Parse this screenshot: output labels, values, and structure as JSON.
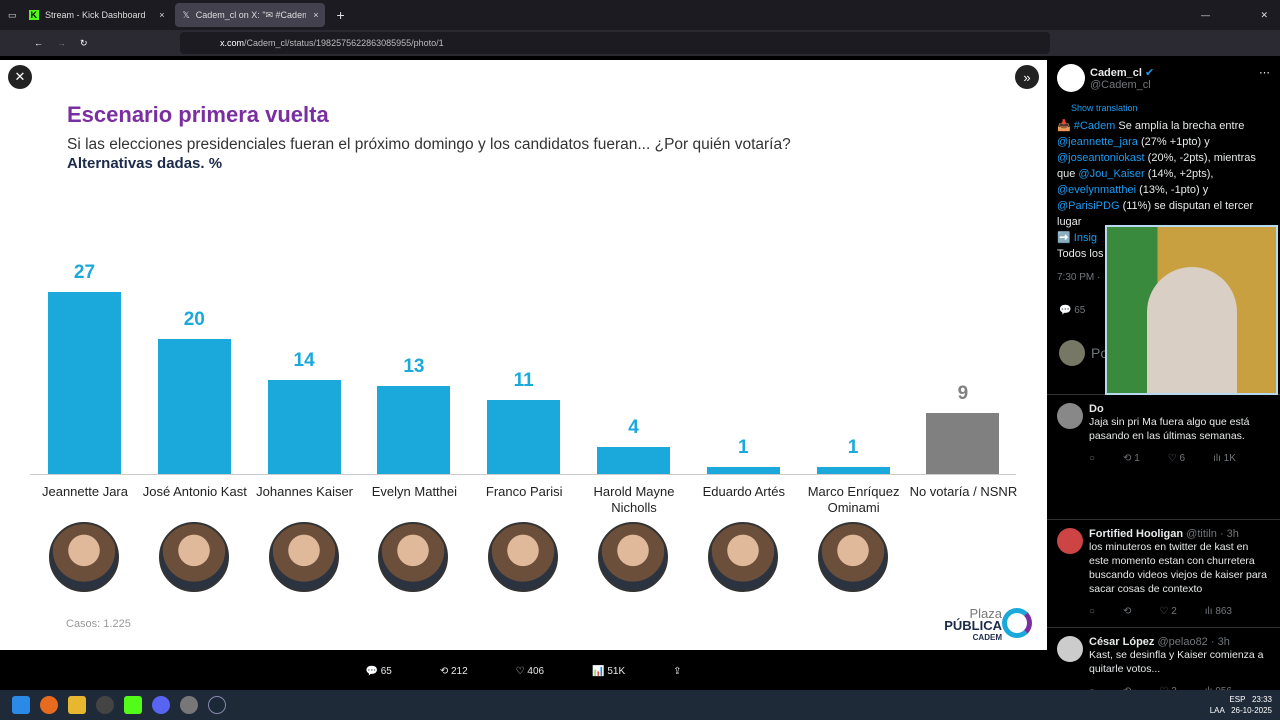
{
  "browser": {
    "tabs": [
      {
        "label": "Stream - Kick Dashboard",
        "icon": "kick-icon"
      },
      {
        "label": "Cadem_cl on X: \"✉ #Cadem Se",
        "icon": "x-icon"
      }
    ],
    "url_host": "x.com",
    "url_path": "/Cadem_cl/status/1982575622863085955/photo/1"
  },
  "slide": {
    "title": "Escenario primera vuelta",
    "subtitle": "Si las elecciones presidenciales fueran el próximo domingo y los candidatos fueran... ¿Por quién votaría?",
    "subtitle2": "Alternativas dadas. %",
    "casos_label": "Casos:",
    "casos_value": "1.225",
    "logo_line1": "Plaza",
    "logo_line2": "PÚBLICA",
    "logo_line3": "CADEM"
  },
  "chart_data": {
    "type": "bar",
    "title": "Escenario primera vuelta",
    "categories": [
      "Jeannette Jara",
      "José Antonio Kast",
      "Johannes Kaiser",
      "Evelyn Matthei",
      "Franco Parisi",
      "Harold Mayne Nicholls",
      "Eduardo Artés",
      "Marco Enríquez Ominami",
      "No votaría / NSNR"
    ],
    "values": [
      27,
      20,
      14,
      13,
      11,
      4,
      1,
      1,
      9
    ],
    "colors": [
      "#1ba9db",
      "#1ba9db",
      "#1ba9db",
      "#1ba9db",
      "#1ba9db",
      "#1ba9db",
      "#1ba9db",
      "#1ba9db",
      "#808080"
    ],
    "ylim": [
      0,
      30
    ],
    "xlabel": "",
    "ylabel": ""
  },
  "actions": {
    "replies": "65",
    "reposts": "212",
    "likes": "406",
    "views": "51K"
  },
  "tweet": {
    "name": "Cadem_cl",
    "handle": "@Cadem_cl",
    "show_translation": "Show translation",
    "text_parts": [
      "#Cadem",
      "Se amplía la brecha entre",
      "@jeannette_jara",
      "(27% +1pto) y",
      "@joseantoniokast",
      "(20%, -2pts),",
      "mientras que",
      "@Jou_Kaiser",
      "(14%, +2pts),",
      "@evelynmatthei",
      "(13%, -1pto) y",
      "@ParisiPDG",
      "(11%) se disputan el tercer lugar",
      "Insig",
      "Todos los"
    ],
    "time": "7:30 PM ·",
    "replies": "65",
    "reply_placeholder": "Po"
  },
  "replies": [
    {
      "name": "Do",
      "text": "Jaja sin pri Ma fuera algo que está pasando en las últimas semanas.",
      "retweets": "1",
      "likes": "6",
      "views": "1K"
    },
    {
      "name": "Fortified Hooligan",
      "handle": "@titiln · 3h",
      "text": "los minuteros en twitter de kast en este momento estan con churretera buscando videos viejos de kaiser para sacar cosas de contexto",
      "retweets": "",
      "likes": "2",
      "views": "863"
    },
    {
      "name": "César López",
      "handle": "@pelao82 · 3h",
      "text": "Kast, se desinfla y Kaiser comienza a quitarle votos...",
      "retweets": "",
      "likes": "2",
      "views": "956"
    }
  ],
  "taskbar": {
    "lang": "ESP",
    "layout": "LAA",
    "time": "23:33",
    "date": "26-10-2025"
  }
}
